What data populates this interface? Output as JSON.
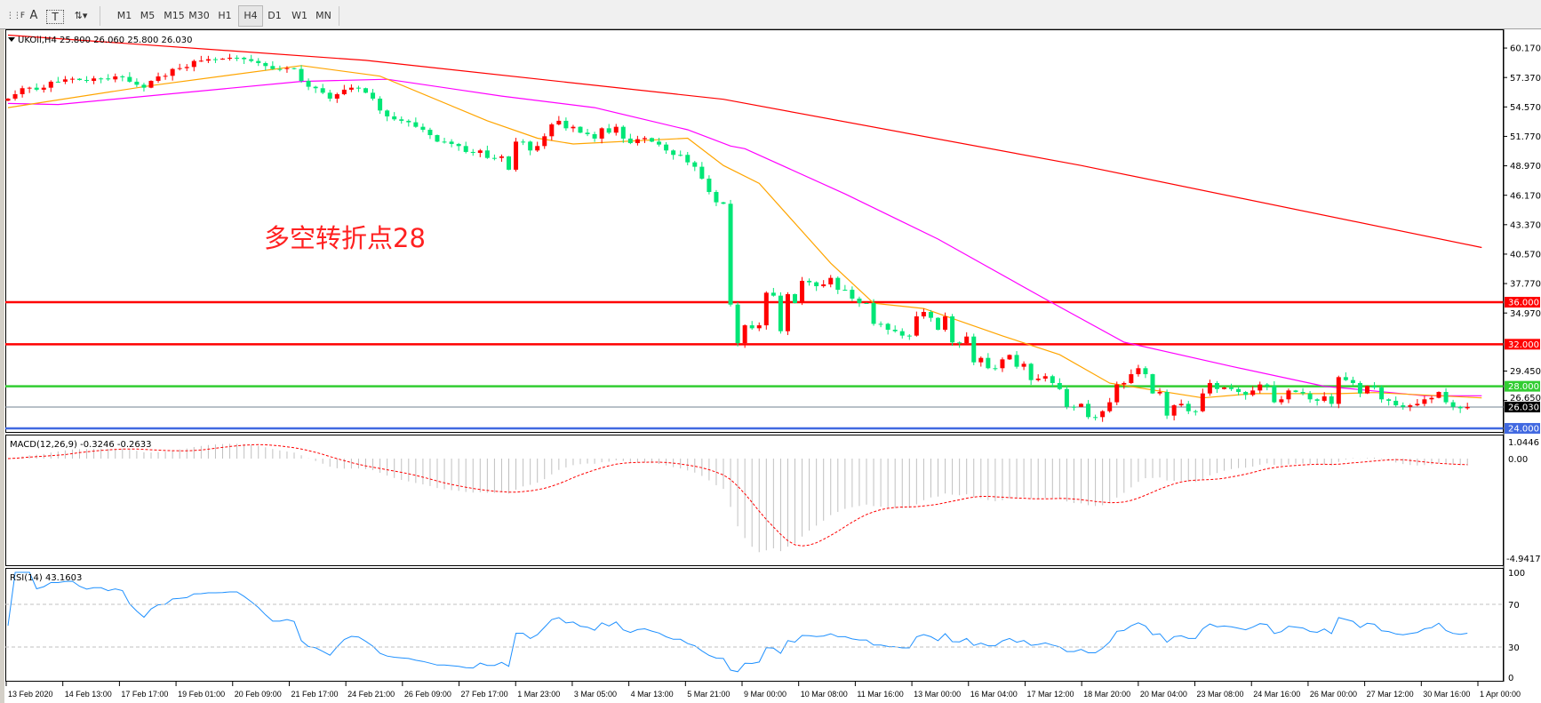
{
  "toolbar": {
    "tools": [
      {
        "name": "grid-fibo-icon",
        "glyph": "⋮⋮F"
      },
      {
        "name": "text-icon",
        "glyph": "A"
      },
      {
        "name": "text-label-icon",
        "glyph": "T"
      },
      {
        "name": "arrows-icon",
        "glyph": "⇅▾"
      }
    ],
    "timeframes": [
      "M1",
      "M5",
      "M15",
      "M30",
      "H1",
      "H4",
      "D1",
      "W1",
      "MN"
    ],
    "selected_timeframe": "H4"
  },
  "chart": {
    "title": "UKOil,H4  25.800 26.060 25.800 26.030",
    "annotation": "多空转折点28",
    "price_axis_labels": [
      "60.170",
      "57.370",
      "54.570",
      "51.770",
      "48.970",
      "46.170",
      "43.370",
      "40.570",
      "37.770",
      "34.970",
      "29.450",
      "26.650"
    ],
    "hlines": [
      {
        "label": "36.000",
        "price": 36.0,
        "color": "#ff0000"
      },
      {
        "label": "32.000",
        "price": 32.0,
        "color": "#ff0000"
      },
      {
        "label": "28.000",
        "price": 28.0,
        "color": "#32cd32"
      },
      {
        "label": "26.030",
        "price": 26.03,
        "color": "#000000",
        "line_color": "#708090"
      },
      {
        "label": "24.000",
        "price": 24.0,
        "color": "#4169e1"
      }
    ],
    "colors": {
      "bull": "#ff0000",
      "bear": "#00e676",
      "ma_fast": "#ffa500",
      "ma_mid": "#ff00ff",
      "ma_slow": "#ff0000",
      "macd_hist": "#c0c0c0",
      "macd_signal": "#ff0000",
      "rsi": "#1e90ff"
    },
    "time_labels": [
      "13 Feb 2020",
      "14 Feb 13:00",
      "17 Feb 17:00",
      "19 Feb 01:00",
      "20 Feb 09:00",
      "21 Feb 17:00",
      "24 Feb 21:00",
      "26 Feb 09:00",
      "27 Feb 17:00",
      "1 Mar 23:00",
      "3 Mar 05:00",
      "4 Mar 13:00",
      "5 Mar 21:00",
      "9 Mar 00:00",
      "10 Mar 08:00",
      "11 Mar 16:00",
      "13 Mar 00:00",
      "16 Mar 04:00",
      "17 Mar 12:00",
      "18 Mar 20:00",
      "20 Mar 04:00",
      "23 Mar 08:00",
      "24 Mar 16:00",
      "26 Mar 00:00",
      "27 Mar 12:00",
      "30 Mar 16:00",
      "1 Apr 00:00"
    ]
  },
  "macd": {
    "label": "MACD(12,26,9) -0.3246 -0.2633",
    "axis_labels": [
      "1.0446",
      "0.00",
      "-4.9417"
    ]
  },
  "rsi": {
    "label": "RSI(14) 43.1603",
    "axis_labels": [
      "100",
      "70",
      "30",
      "0"
    ]
  },
  "chart_data": {
    "type": "candlestick",
    "symbol": "UKOil",
    "timeframe": "H4",
    "ylim": [
      22.5,
      61.5
    ],
    "closes": [
      55.36,
      55.78,
      56.35,
      56.4,
      56.21,
      56.4,
      56.97,
      56.97,
      57.19,
      57.25,
      57.13,
      57.05,
      57.28,
      57.28,
      57.19,
      57.47,
      57.42,
      56.97,
      56.68,
      56.4,
      57.05,
      57.47,
      57.53,
      58.18,
      58.26,
      58.37,
      58.94,
      58.97,
      59.11,
      59.11,
      59.16,
      59.25,
      59.25,
      59.11,
      58.94,
      58.74,
      58.46,
      58.18,
      58.18,
      58.26,
      58.18,
      57.05,
      56.49,
      56.35,
      55.92,
      55.36,
      55.78,
      56.21,
      56.4,
      56.35,
      55.92,
      55.36,
      54.23,
      53.67,
      53.39,
      53.25,
      53.11,
      52.68,
      52.4,
      51.89,
      51.27,
      51.27,
      51.05,
      50.85,
      50.29,
      50.2,
      50.43,
      49.72,
      49.72,
      49.86,
      48.6,
      51.27,
      51.27,
      50.43,
      50.85,
      51.78,
      52.91,
      53.25,
      52.54,
      52.68,
      52.12,
      51.98,
      51.56,
      52.54,
      52.12,
      52.68,
      51.56,
      51.13,
      51.5,
      51.61,
      51.27,
      50.99,
      50.43,
      50.01,
      50.01,
      49.3,
      48.88,
      47.75,
      46.48,
      45.5,
      45.36,
      35.77,
      32.11,
      33.8,
      33.52,
      33.8,
      36.9,
      36.62,
      33.24,
      36.76,
      35.92,
      38.03,
      37.89,
      37.52,
      37.69,
      38.31,
      37.18,
      37.18,
      36.34,
      35.92,
      35.92,
      33.94,
      33.94,
      33.38,
      33.24,
      32.82,
      32.82,
      34.65,
      35.07,
      34.51,
      33.38,
      34.65,
      32.17,
      32.11,
      32.73,
      30.28,
      30.7,
      29.72,
      29.72,
      30.56,
      30.98,
      29.86,
      30.14,
      28.59,
      28.73,
      28.96,
      28.31,
      27.74,
      26.05,
      26.05,
      26.33,
      25.07,
      25.07,
      25.63,
      26.48,
      28.17,
      28.31,
      29.15,
      29.72,
      29.15,
      27.32,
      27.46,
      25.21,
      26.19,
      26.33,
      25.63,
      25.63,
      27.32,
      28.31,
      27.74,
      27.88,
      27.74,
      27.46,
      27.18,
      27.6,
      28.17,
      28.03,
      26.48,
      26.76,
      27.6,
      27.46,
      27.32,
      26.76,
      26.62,
      27.04,
      26.33,
      28.87,
      28.59,
      28.31,
      27.32,
      28.03,
      27.88,
      26.76,
      26.62,
      26.19,
      26.05,
      26.19,
      26.33,
      26.76,
      26.9,
      27.46,
      26.48,
      26.05,
      25.91,
      26.03
    ],
    "ma_fast": [
      [
        0,
        54.5
      ],
      [
        20,
        56.6
      ],
      [
        41,
        58.5
      ],
      [
        52,
        57.5
      ],
      [
        67,
        53.25
      ],
      [
        74,
        51.6
      ],
      [
        79,
        51.05
      ],
      [
        95,
        51.6
      ],
      [
        100,
        49.0
      ],
      [
        105,
        47.3
      ],
      [
        115,
        39.7
      ],
      [
        121,
        35.9
      ],
      [
        128,
        35.4
      ],
      [
        139,
        32.8
      ],
      [
        147,
        31.0
      ],
      [
        154,
        28.3
      ],
      [
        167,
        26.9
      ],
      [
        174,
        27.3
      ],
      [
        186,
        27.3
      ],
      [
        191,
        27.4
      ],
      [
        206,
        26.9
      ]
    ],
    "ma_mid": [
      [
        0,
        54.9
      ],
      [
        7,
        54.8
      ],
      [
        41,
        57.0
      ],
      [
        53,
        57.2
      ],
      [
        69,
        55.6
      ],
      [
        82,
        54.5
      ],
      [
        95,
        52.4
      ],
      [
        101,
        50.85
      ],
      [
        103,
        50.6
      ],
      [
        117,
        46.3
      ],
      [
        130,
        42.0
      ],
      [
        145,
        36.3
      ],
      [
        156,
        32.2
      ],
      [
        171,
        29.9
      ],
      [
        184,
        28.0
      ],
      [
        198,
        27.1
      ],
      [
        206,
        27.1
      ]
    ],
    "ma_slow": [
      [
        0,
        61.4
      ],
      [
        50,
        59.0
      ],
      [
        100,
        55.3
      ],
      [
        150,
        49.0
      ],
      [
        206,
        41.2
      ]
    ]
  }
}
